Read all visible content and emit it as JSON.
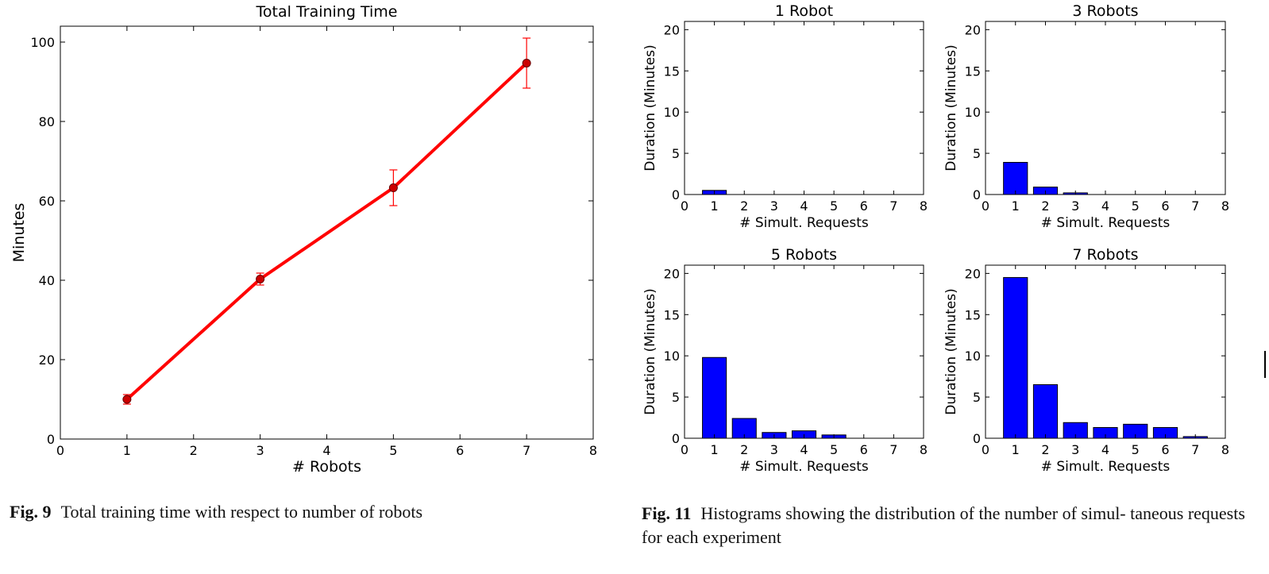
{
  "chart_data": [
    {
      "type": "line",
      "title": "Total Training Time",
      "xlabel": "# Robots",
      "ylabel": "Minutes",
      "xlim": [
        0,
        8
      ],
      "ylim": [
        0,
        104
      ],
      "xticks": [
        "0",
        "1",
        "2",
        "3",
        "4",
        "5",
        "6",
        "7",
        "8"
      ],
      "yticks": [
        "0",
        "20",
        "40",
        "60",
        "80",
        "100"
      ],
      "grid": false,
      "color": "#ff0000",
      "series": [
        {
          "x": [
            1,
            3,
            5,
            7
          ],
          "y": [
            10,
            40.3,
            63.3,
            94.7
          ],
          "error": [
            1.2,
            1.5,
            4.5,
            6.3
          ]
        }
      ]
    },
    {
      "type": "bar",
      "title": "1 Robot",
      "xlabel": "# Simult. Requests",
      "ylabel": "Duration (Minutes)",
      "xlim": [
        0,
        8
      ],
      "ylim": [
        0,
        21
      ],
      "color": "#0000ff",
      "categories": [
        1
      ],
      "values": [
        0.5
      ]
    },
    {
      "type": "bar",
      "title": "3 Robots",
      "xlabel": "# Simult. Requests",
      "ylabel": "Duration (Minutes)",
      "xlim": [
        0,
        8
      ],
      "ylim": [
        0,
        21
      ],
      "color": "#0000ff",
      "categories": [
        1,
        2,
        3
      ],
      "values": [
        3.9,
        0.9,
        0.2
      ]
    },
    {
      "type": "bar",
      "title": "5 Robots",
      "xlabel": "# Simult. Requests",
      "ylabel": "Duration (Minutes)",
      "xlim": [
        0,
        8
      ],
      "ylim": [
        0,
        21
      ],
      "color": "#0000ff",
      "categories": [
        1,
        2,
        3,
        4,
        5
      ],
      "values": [
        9.8,
        2.4,
        0.7,
        0.9,
        0.4
      ]
    },
    {
      "type": "bar",
      "title": "7 Robots",
      "xlabel": "# Simult. Requests",
      "ylabel": "Duration (Minutes)",
      "xlim": [
        0,
        8
      ],
      "ylim": [
        0,
        21
      ],
      "color": "#0000ff",
      "categories": [
        1,
        2,
        3,
        4,
        5,
        6,
        7
      ],
      "values": [
        19.5,
        6.5,
        1.9,
        1.3,
        1.7,
        1.3,
        0.2
      ]
    }
  ],
  "captions": {
    "fig9_label": "Fig. 9",
    "fig9_text": "Total training time with respect to number of robots",
    "fig11_label": "Fig. 11",
    "fig11_text": "Histograms showing the distribution of the number of simul- taneous requests for each experiment"
  }
}
